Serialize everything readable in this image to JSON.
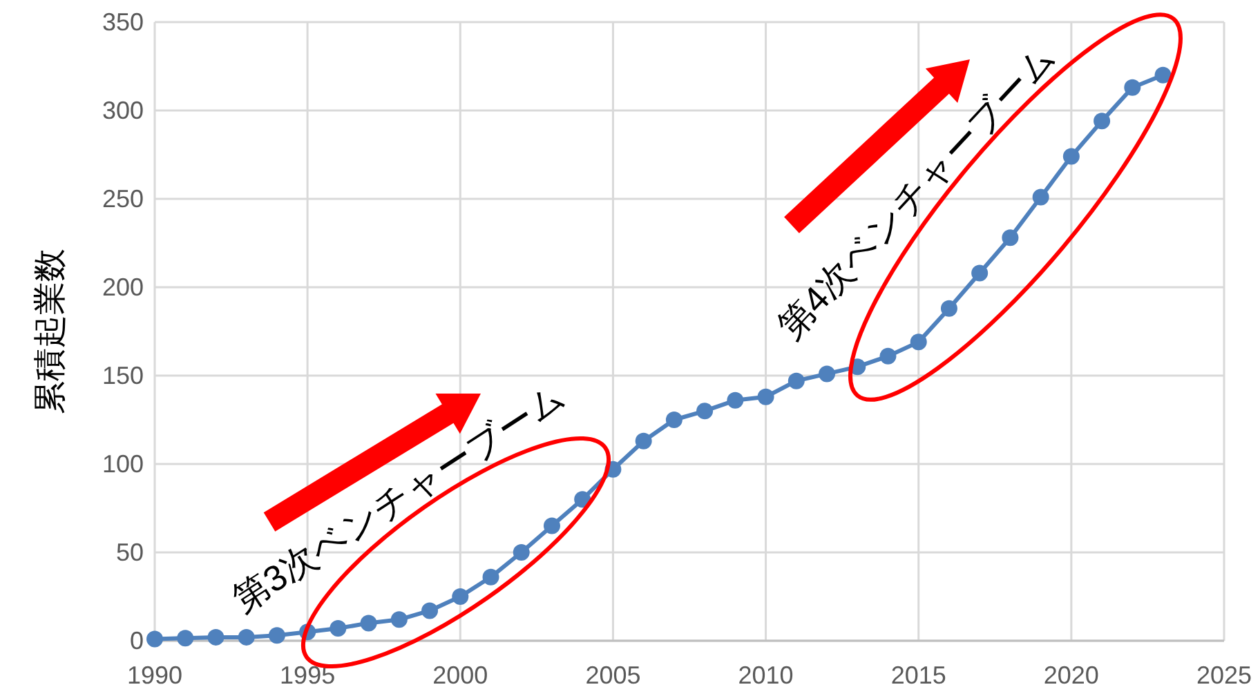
{
  "chart_data": {
    "type": "line",
    "ylabel": "累積起業数",
    "x": [
      1990,
      1991,
      1992,
      1993,
      1994,
      1995,
      1996,
      1997,
      1998,
      1999,
      2000,
      2001,
      2002,
      2003,
      2004,
      2005,
      2006,
      2007,
      2008,
      2009,
      2010,
      2011,
      2012,
      2013,
      2014,
      2015,
      2016,
      2017,
      2018,
      2019,
      2020,
      2021,
      2022,
      2023
    ],
    "series": [
      {
        "color": "#4f81bd",
        "values": [
          1,
          1.5,
          2,
          2,
          3,
          5,
          7,
          10,
          12,
          17,
          25,
          36,
          50,
          65,
          80,
          97,
          113,
          125,
          130,
          136,
          138,
          147,
          151,
          155,
          161,
          169,
          188,
          208,
          228,
          251,
          274,
          294,
          313,
          320
        ]
      }
    ],
    "xlim": [
      1990,
      2025
    ],
    "xticks": [
      1990,
      1995,
      2000,
      2005,
      2010,
      2015,
      2020,
      2025
    ],
    "ylim": [
      0,
      350
    ],
    "yticks": [
      0,
      50,
      100,
      150,
      200,
      250,
      300,
      350
    ],
    "grid": true,
    "marker": "circle",
    "line_style": "solid",
    "annotations": [
      "第3次ベンチャーブーム",
      "第4次ベンチャーブーム"
    ]
  }
}
